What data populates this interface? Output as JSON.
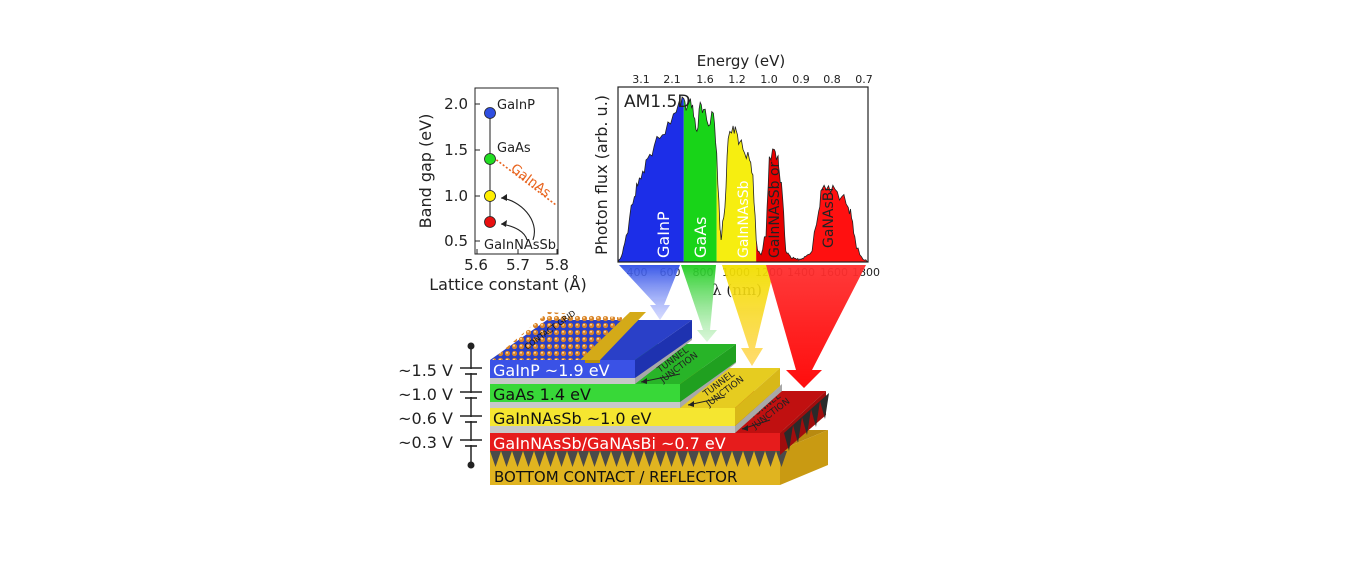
{
  "bandgap_chart": {
    "ylabel": "Band gap (eV)",
    "xlabel": "Lattice constant (Å)",
    "y_ticks": [
      "2.0",
      "1.5",
      "1.0",
      "0.5"
    ],
    "x_ticks": [
      "5.6",
      "5.7",
      "5.8"
    ],
    "materials": [
      {
        "label": "GaInP",
        "bandgap_ev": 1.9,
        "color": "#2f4ee0"
      },
      {
        "label": "GaAs",
        "bandgap_ev": 1.4,
        "color": "#22dd22"
      },
      {
        "label": "",
        "bandgap_ev": 1.0,
        "color": "#ffee00"
      },
      {
        "label": "GaInNAsSb",
        "bandgap_ev": 0.7,
        "color": "#e81010"
      }
    ],
    "alloy_line_label": "GaInAs",
    "alloy_line_color": "#e8641e"
  },
  "spectrum_chart": {
    "type": "area",
    "top_axis_label": "Energy (eV)",
    "top_ticks": [
      "3.1",
      "2.1",
      "1.6",
      "1.2",
      "1.0",
      "0.9",
      "0.8",
      "0.7"
    ],
    "bottom_ticks": [
      "400",
      "600",
      "800",
      "1000",
      "1200",
      "1400",
      "1600",
      "1800"
    ],
    "xlabel": "λ (nm)",
    "ylabel": "Photon flux (arb. u.)",
    "corner_label": "AM1.5D",
    "bands": [
      {
        "label": "GaInP",
        "color": "#1c2ee8"
      },
      {
        "label": "GaAs",
        "color": "#18d418"
      },
      {
        "label": "GaInNAsSb",
        "color": "#f6ee10"
      },
      {
        "label": "GaInNAsSb or",
        "color": "#e60000"
      },
      {
        "label": "GaNAsBi",
        "color": "#ff1010"
      }
    ]
  },
  "chart_data": {
    "type": "area",
    "title": "AM1.5D",
    "xlabel": "λ (nm)",
    "ylabel": "Photon flux (arb. u.)",
    "xlim": [
      280,
      1800
    ],
    "x": [
      280,
      300,
      320,
      350,
      380,
      400,
      430,
      460,
      500,
      550,
      600,
      650,
      680,
      700,
      720,
      740,
      760,
      780,
      800,
      830,
      860,
      880,
      900,
      910,
      930,
      950,
      980,
      1000,
      1020,
      1050,
      1080,
      1100,
      1120,
      1130,
      1150,
      1180,
      1200,
      1230,
      1250,
      1260,
      1280,
      1300,
      1320,
      1340,
      1360,
      1380,
      1400,
      1420,
      1460,
      1500,
      1520,
      1560,
      1600,
      1640,
      1680,
      1700,
      1720,
      1750,
      1780,
      1800
    ],
    "series": [
      {
        "values": [
          0,
          3,
          10,
          24,
          36,
          42,
          50,
          57,
          64,
          70,
          76,
          88,
          90,
          85,
          90,
          80,
          72,
          88,
          84,
          75,
          82,
          60,
          18,
          14,
          30,
          68,
          75,
          72,
          66,
          60,
          56,
          48,
          12,
          6,
          4,
          14,
          58,
          62,
          58,
          50,
          36,
          6,
          4,
          2,
          2,
          1,
          2,
          3,
          6,
          28,
          40,
          42,
          40,
          36,
          30,
          24,
          14,
          4,
          1,
          0
        ]
      }
    ]
  },
  "tandem_stack": {
    "contact_grid_label": "CONTACT GRID",
    "tunnel_junction_label_1": "TUNNEL",
    "tunnel_junction_label_2": "JUNCTION",
    "layers": [
      {
        "name": "GaInP ~1.9 eV",
        "voltage": "~1.5 V",
        "color": "#3a52e6"
      },
      {
        "name": "GaAs 1.4 eV",
        "voltage": "~1.0 V",
        "color": "#38d838"
      },
      {
        "name": "GaInNAsSb ~1.0 eV",
        "voltage": "~0.6 V",
        "color": "#f5e630"
      },
      {
        "name": "GaInNAsSb/GaNAsBi ~0.7 eV",
        "voltage": "~0.3 V",
        "color": "#e61c1c"
      }
    ],
    "bottom_label": "BOTTOM CONTACT / REFLECTOR",
    "bottom_color": "#e0b420"
  }
}
